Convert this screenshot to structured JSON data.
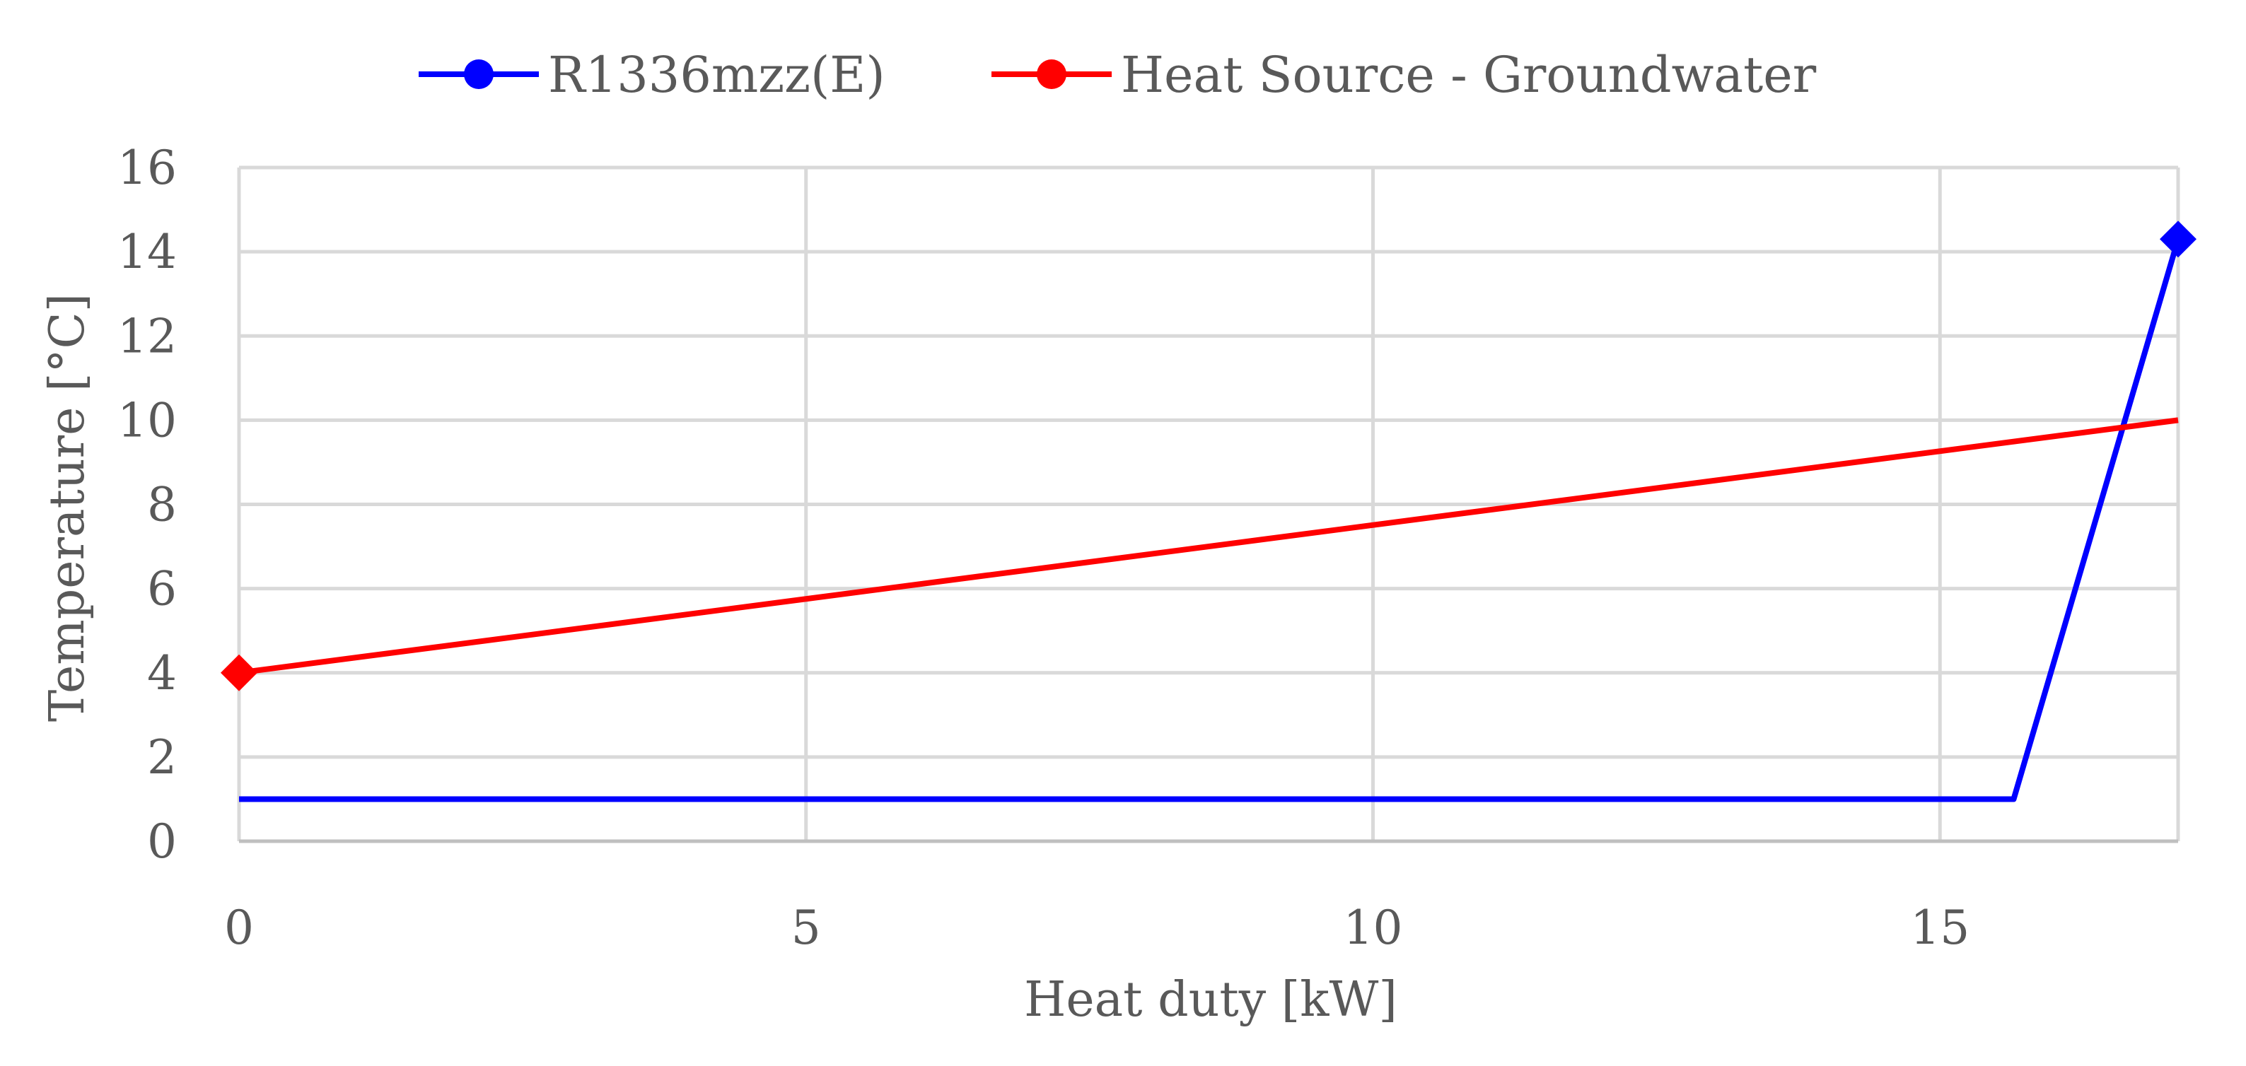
{
  "chart_data": {
    "type": "line",
    "title": "",
    "xlabel": "Heat duty [kW]",
    "ylabel": "Temperature [°C]",
    "xlim": [
      0,
      17.1
    ],
    "ylim": [
      0,
      16
    ],
    "x_ticks": [
      0,
      5,
      10,
      15
    ],
    "y_ticks": [
      0,
      2,
      4,
      6,
      8,
      10,
      12,
      14,
      16
    ],
    "grid": true,
    "legend_position": "top",
    "series": [
      {
        "name": "R1336mzz(E)",
        "color": "#0000ff",
        "x": [
          0,
          15.65,
          17.1
        ],
        "y": [
          1.0,
          1.0,
          14.3
        ],
        "end_marker": "diamond",
        "end_marker_index": 2
      },
      {
        "name": "Heat Source - Groundwater",
        "color": "#ff0000",
        "x": [
          0,
          17.1
        ],
        "y": [
          4.0,
          10.0
        ],
        "end_marker": "diamond",
        "end_marker_index": 0
      }
    ]
  }
}
